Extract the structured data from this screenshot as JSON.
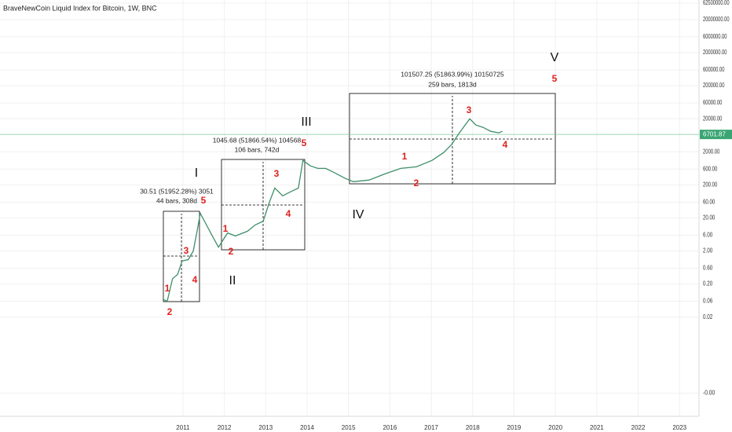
{
  "chart_data": {
    "type": "line",
    "title": "BraveNewCoin Liquid Index for Bitcoin, 1W, BNC",
    "log_scale": true,
    "grid": true,
    "color": "#3f8f6a",
    "x": [
      2010.51,
      2010.62,
      2010.75,
      2010.87,
      2010.98,
      2011.13,
      2011.25,
      2011.36,
      2011.42,
      2011.55,
      2011.7,
      2011.86,
      2011.97,
      2012.08,
      2012.27,
      2012.56,
      2012.75,
      2012.94,
      2013.09,
      2013.22,
      2013.41,
      2013.6,
      2013.79,
      2013.9,
      2014.08,
      2014.26,
      2014.45,
      2014.64,
      2014.93,
      2015.12,
      2015.5,
      2015.88,
      2016.26,
      2016.64,
      2017.02,
      2017.3,
      2017.49,
      2017.68,
      2017.93,
      2018.08,
      2018.25,
      2018.44,
      2018.63,
      2018.72
    ],
    "values": [
      0.07,
      0.06,
      0.29,
      0.39,
      1.0,
      1.1,
      2,
      10.5,
      27.5,
      13.6,
      6,
      2.6,
      4.3,
      7,
      5.7,
      7.9,
      12.3,
      15.9,
      60,
      160,
      93,
      123,
      160,
      1090,
      750,
      630,
      630,
      480,
      310,
      250,
      280,
      430,
      630,
      700,
      1100,
      1900,
      3300,
      7500,
      19900,
      12900,
      11000,
      8300,
      7500,
      8300
    ],
    "xlim": [
      2006.58,
      2023.47
    ],
    "xticks": [
      2011,
      2012,
      2013,
      2014,
      2015,
      2016,
      2017,
      2018,
      2019,
      2020,
      2021,
      2022,
      2023
    ],
    "ylim": [
      2e-05,
      78000000
    ],
    "yticks": [
      {
        "value": 62500000,
        "label": "62500000.00"
      },
      {
        "value": 20000000,
        "label": "20000000.00"
      },
      {
        "value": 6000000,
        "label": "6000000.00"
      },
      {
        "value": 2000000,
        "label": "2000000.00"
      },
      {
        "value": 600000,
        "label": "600000.00"
      },
      {
        "value": 200000,
        "label": "200000.00"
      },
      {
        "value": 60000,
        "label": "60000.00"
      },
      {
        "value": 20000,
        "label": "20000.00"
      },
      {
        "value": 2000,
        "label": "2000.00"
      },
      {
        "value": 600,
        "label": "600.00"
      },
      {
        "value": 200,
        "label": "200.00"
      },
      {
        "value": 60,
        "label": "60.00"
      },
      {
        "value": 20,
        "label": "20.00"
      },
      {
        "value": 6,
        "label": "6.00"
      },
      {
        "value": 2,
        "label": "2.00"
      },
      {
        "value": 0.6,
        "label": "0.60"
      },
      {
        "value": 0.2,
        "label": "0.20"
      },
      {
        "value": 0.06,
        "label": "0.06"
      },
      {
        "value": 0.02,
        "label": "0.02"
      },
      {
        "value": 0.0001,
        "label": "-0.00"
      }
    ],
    "last_price": 6701.87,
    "annotations": {
      "measures": [
        "30.51 (51952.28%) 3051",
        "44 bars, 308d",
        "1045.68 (51866.54%) 104568",
        "106 bars, 742d",
        "101507.25 (51863.99%) 10150725",
        "259 bars, 1813d"
      ],
      "waves": [
        "I",
        "II",
        "III",
        "IV",
        "V"
      ],
      "counts": [
        "1",
        "2",
        "3",
        "4",
        "5",
        "1",
        "2",
        "3",
        "4",
        "5",
        "1",
        "2",
        "3",
        "4",
        "5"
      ]
    }
  }
}
